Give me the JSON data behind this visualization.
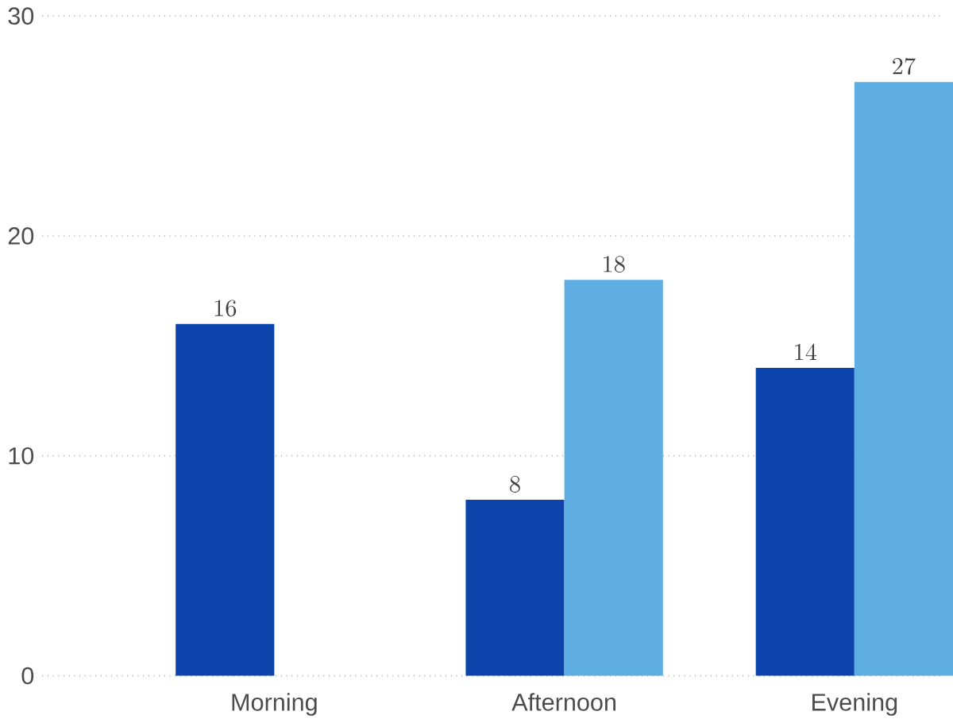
{
  "chart_data": {
    "type": "bar",
    "categories": [
      "Morning",
      "Afternoon",
      "Evening"
    ],
    "series": [
      {
        "color": "#0c44ac",
        "values": [
          16,
          8,
          14
        ]
      },
      {
        "color": "#5eaee3",
        "values": [
          null,
          18,
          27
        ]
      }
    ],
    "ylim": [
      0,
      30
    ],
    "yticks": [
      0,
      10,
      20,
      30
    ],
    "grid": "y",
    "data_labels": true
  }
}
